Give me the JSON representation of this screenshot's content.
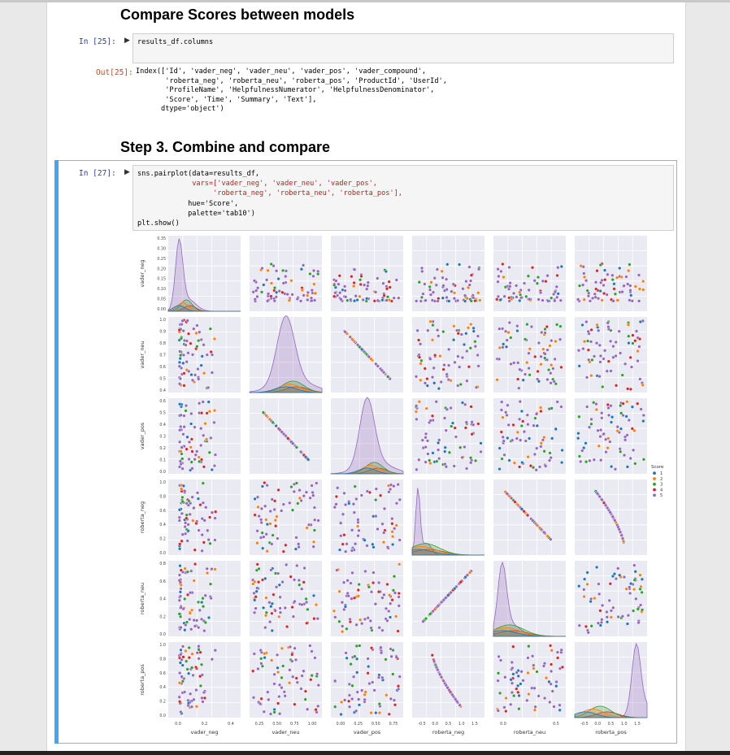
{
  "notebook": {
    "heading1": "Compare Scores between models",
    "cell25": {
      "in_prompt": "In [25]:",
      "code": "results_df.columns",
      "out_prompt": "Out[25]:",
      "output_lines": [
        "Index(['Id', 'vader_neg', 'vader_neu', 'vader_pos', 'vader_compound',",
        "       'roberta_neg', 'roberta_neu', 'roberta_pos', 'ProductId', 'UserId',",
        "       'ProfileName', 'HelpfulnessNumerator', 'HelpfulnessDenominator',",
        "       'Score', 'Time', 'Summary', 'Text'],",
        "      dtype='object')"
      ]
    },
    "heading2": "Step 3. Combine and compare",
    "cell27": {
      "in_prompt": "In [27]:",
      "code_lines": [
        "sns.pairplot(data=results_df,",
        "             vars=['vader_neg', 'vader_neu', 'vader_pos',",
        "                  'roberta_neg', 'roberta_neu', 'roberta_pos'],",
        "            hue='Score',",
        "            palette='tab10')",
        "plt.show()"
      ]
    }
  },
  "chart_data": {
    "type": "scatter",
    "kind": "pairplot",
    "vars": [
      "vader_neg",
      "vader_neu",
      "vader_pos",
      "roberta_neg",
      "roberta_neu",
      "roberta_pos"
    ],
    "hue": "Score",
    "legend": {
      "title": "Score",
      "placement": "right",
      "entries": [
        "1",
        "2",
        "3",
        "4",
        "5"
      ]
    },
    "palette": {
      "1": "#1f77b4",
      "2": "#ff7f0e",
      "3": "#2ca02c",
      "4": "#d62728",
      "5": "#9467bd"
    },
    "grid": true,
    "axes": {
      "vader_neg": {
        "range": [
          -0.05,
          0.4
        ],
        "ticks": [
          "0.0",
          "0.2",
          "0.4"
        ],
        "yticks": [
          "0.00",
          "0.05",
          "0.10",
          "0.15",
          "0.20",
          "0.25",
          "0.30",
          "0.35"
        ]
      },
      "vader_neu": {
        "range": [
          0.22,
          1.06
        ],
        "ticks": [
          "0.25",
          "0.50",
          "0.75",
          "1.00"
        ],
        "yticks": [
          "0.4",
          "0.5",
          "0.6",
          "0.7",
          "0.8",
          "0.9",
          "1.0"
        ]
      },
      "vader_pos": {
        "range": [
          -0.05,
          0.78
        ],
        "ticks": [
          "0.00",
          "0.25",
          "0.50",
          "0.75"
        ],
        "yticks": [
          "0.0",
          "0.1",
          "0.2",
          "0.3",
          "0.4",
          "0.5",
          "0.6"
        ]
      },
      "roberta_neg": {
        "range": [
          -0.55,
          1.55
        ],
        "ticks": [
          "-0.5",
          "0.0",
          "0.5",
          "1.0",
          "1.5"
        ],
        "yticks": [
          "0.0",
          "0.2",
          "0.4",
          "0.6",
          "0.8",
          "1.0"
        ]
      },
      "roberta_neu": {
        "range": [
          -0.15,
          0.95
        ],
        "ticks": [
          "0.0",
          "0.5"
        ],
        "yticks": [
          "0.0",
          "0.2",
          "0.4",
          "0.6",
          "0.8"
        ]
      },
      "roberta_pos": {
        "range": [
          -0.55,
          1.55
        ],
        "ticks": [
          "-0.5",
          "0.0",
          "0.5",
          "1.0",
          "1.5"
        ],
        "yticks": [
          "0.0",
          "0.2",
          "0.4",
          "0.6",
          "0.8",
          "1.0"
        ]
      }
    }
  }
}
